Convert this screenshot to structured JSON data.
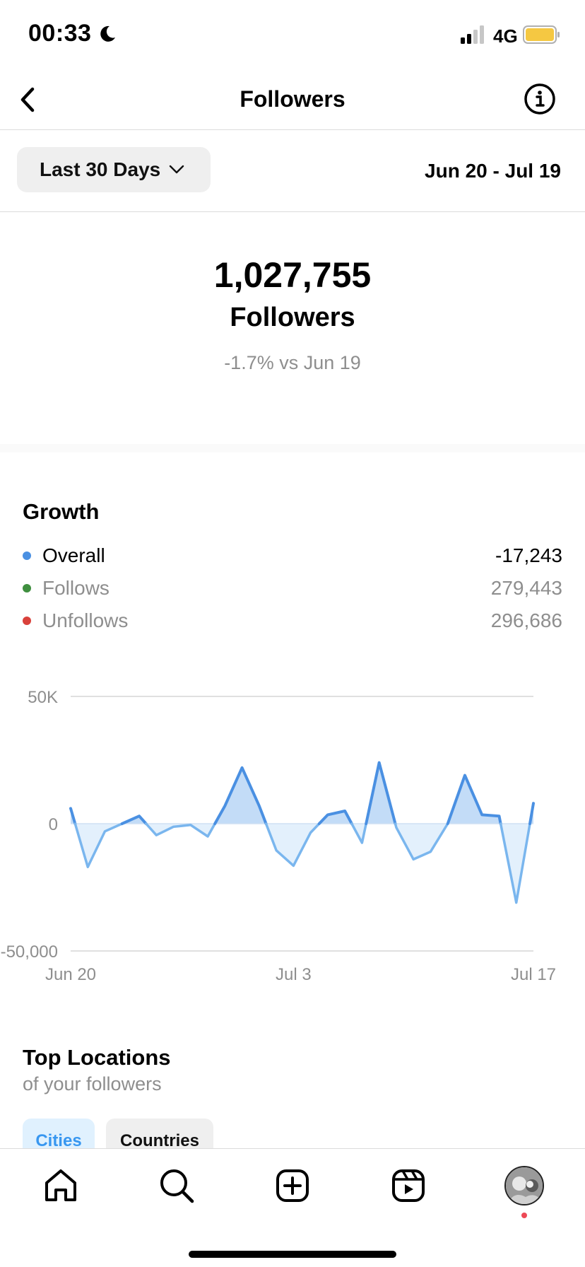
{
  "status": {
    "time": "00:33",
    "network": "4G"
  },
  "header": {
    "title": "Followers"
  },
  "filter": {
    "range_label": "Last 30 Days",
    "date_range": "Jun 20 - Jul 19"
  },
  "summary": {
    "count": "1,027,755",
    "label": "Followers",
    "delta": "-1.7% vs Jun 19"
  },
  "growth": {
    "title": "Growth",
    "legend": [
      {
        "name": "Overall",
        "value": "-17,243",
        "color": "#4a90e2"
      },
      {
        "name": "Follows",
        "value": "279,443",
        "color": "#3f8f3f"
      },
      {
        "name": "Unfollows",
        "value": "296,686",
        "color": "#d9413b"
      }
    ]
  },
  "chart_data": {
    "type": "area",
    "series": [
      {
        "name": "Overall",
        "values": [
          6000,
          -17000,
          -3000,
          0,
          3000,
          -4500,
          -1200,
          -500,
          -5000,
          7000,
          22000,
          7000,
          -10500,
          -16500,
          -3500,
          3500,
          5000,
          -7500,
          24000,
          -1500,
          -14000,
          -11000,
          0,
          19000,
          3500,
          3000,
          -31000,
          8000
        ]
      }
    ],
    "x_tick_labels": [
      "Jun 20",
      "Jul 3",
      "Jul 17"
    ],
    "x_tick_index": [
      0,
      13,
      27
    ],
    "y_tick_labels": [
      "50K",
      "0",
      "-50,000"
    ],
    "y_ticks": [
      50000,
      0,
      -50000
    ],
    "ylim": [
      -50000,
      50000
    ],
    "grid": true,
    "positive_color": "#4a90e2",
    "negative_color": "#7ab6ee"
  },
  "locations": {
    "title": "Top Locations",
    "subtitle": "of your followers",
    "tabs": {
      "cities": "Cities",
      "countries": "Countries"
    }
  }
}
